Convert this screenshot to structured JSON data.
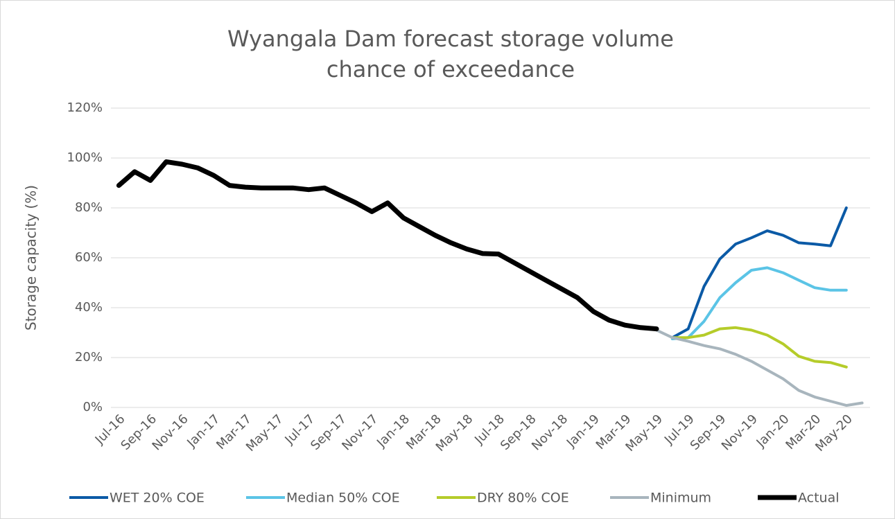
{
  "chart_data": {
    "type": "line",
    "title": [
      "Wyangala Dam forecast storage volume",
      "chance of exceedance"
    ],
    "y_label": "Storage capacity (%)",
    "categories": [
      "Jul-16",
      null,
      "Sep-16",
      null,
      "Nov-16",
      null,
      "Jan-17",
      null,
      "Mar-17",
      null,
      "May-17",
      null,
      "Jul-17",
      null,
      "Sep-17",
      null,
      "Nov-17",
      null,
      "Jan-18",
      null,
      "Mar-18",
      null,
      "May-18",
      null,
      "Jul-18",
      null,
      "Sep-18",
      null,
      "Nov-18",
      null,
      "Jan-19",
      null,
      "Mar-19",
      null,
      "May-19",
      null,
      "Jul-19",
      null,
      "Sep-19",
      null,
      "Nov-19",
      null,
      "Jan-20",
      null,
      "Mar-20",
      null,
      "May-20",
      null
    ],
    "series": [
      {
        "name": "WET 20% COE",
        "color": "#0b5aa6",
        "values": [
          null,
          null,
          null,
          null,
          null,
          null,
          null,
          null,
          null,
          null,
          null,
          null,
          null,
          null,
          null,
          null,
          null,
          null,
          null,
          null,
          null,
          null,
          null,
          null,
          null,
          null,
          null,
          null,
          null,
          null,
          null,
          null,
          null,
          null,
          null,
          28,
          31.5,
          48.5,
          59.5,
          65.5,
          68,
          70.8,
          69,
          66,
          65.5,
          64.8,
          80,
          null
        ]
      },
      {
        "name": "Median 50% COE",
        "color": "#5bc4e6",
        "values": [
          null,
          null,
          null,
          null,
          null,
          null,
          null,
          null,
          null,
          null,
          null,
          null,
          null,
          null,
          null,
          null,
          null,
          null,
          null,
          null,
          null,
          null,
          null,
          null,
          null,
          null,
          null,
          null,
          null,
          null,
          null,
          null,
          null,
          null,
          null,
          27.5,
          28,
          34.5,
          44,
          50,
          55,
          56,
          54,
          51,
          48,
          47,
          47,
          null
        ]
      },
      {
        "name": "DRY 80% COE",
        "color": "#b5cc2a",
        "values": [
          null,
          null,
          null,
          null,
          null,
          null,
          null,
          null,
          null,
          null,
          null,
          null,
          null,
          null,
          null,
          null,
          null,
          null,
          null,
          null,
          null,
          null,
          null,
          null,
          null,
          null,
          null,
          null,
          null,
          null,
          null,
          null,
          null,
          null,
          null,
          28,
          28,
          29,
          31.5,
          32,
          31,
          29,
          25.5,
          20.5,
          18.5,
          18,
          16.2,
          null
        ]
      },
      {
        "name": "Minimum",
        "color": "#a8b5bd",
        "values": [
          null,
          null,
          null,
          null,
          null,
          null,
          null,
          null,
          null,
          null,
          null,
          null,
          null,
          null,
          null,
          null,
          null,
          null,
          null,
          null,
          null,
          null,
          null,
          null,
          null,
          null,
          null,
          null,
          null,
          null,
          null,
          null,
          null,
          null,
          31,
          28,
          26.5,
          24.8,
          23.5,
          21.3,
          18.5,
          15,
          11.5,
          6.8,
          4.2,
          2.5,
          0.8,
          1.8
        ]
      },
      {
        "name": "Actual",
        "color": "#000000",
        "values": [
          89,
          94.5,
          91,
          98.5,
          97.5,
          96,
          93,
          89,
          88.3,
          88,
          88,
          88,
          87.3,
          88,
          85,
          82,
          78.5,
          82,
          76,
          72.5,
          69,
          66,
          63.5,
          61.7,
          61.5,
          58,
          54.5,
          51,
          47.5,
          44,
          38.5,
          35,
          33,
          32,
          31.5,
          null,
          null,
          null,
          null,
          null,
          null,
          null,
          null,
          null,
          null,
          null,
          null,
          null
        ]
      }
    ],
    "ylim": [
      0,
      120
    ],
    "yticks": [
      {
        "value": 0,
        "label": "0%"
      },
      {
        "value": 20,
        "label": "20%"
      },
      {
        "value": 40,
        "label": "40%"
      },
      {
        "value": 60,
        "label": "60%"
      },
      {
        "value": 80,
        "label": "80%"
      },
      {
        "value": 100,
        "label": "100%"
      },
      {
        "value": 120,
        "label": "120%"
      }
    ],
    "grid": true,
    "legend": "bottom"
  }
}
